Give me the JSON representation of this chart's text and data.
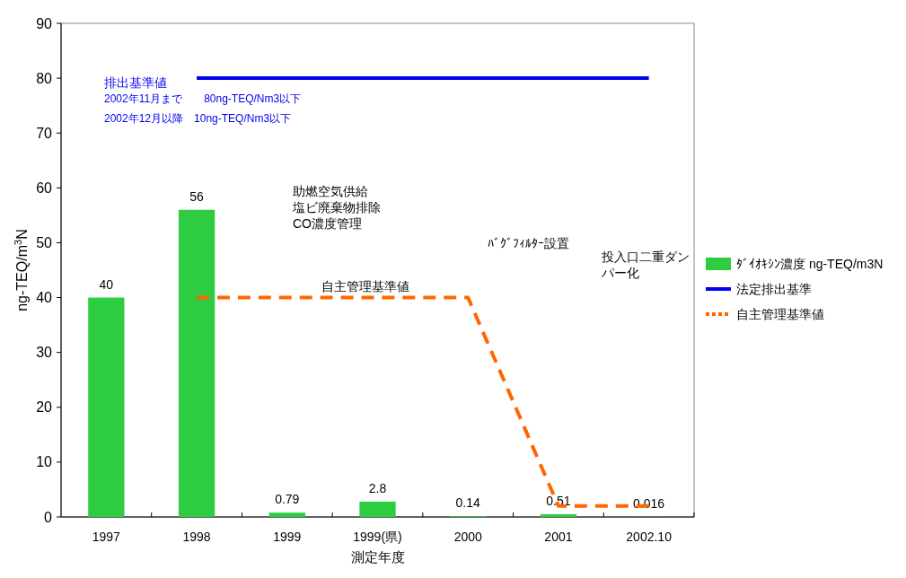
{
  "chart_data": {
    "type": "bar",
    "xlabel": "測定年度",
    "ylabel": "ng-TEQ/m$^{3}$N",
    "categories": [
      "1997",
      "1998",
      "1999",
      "1999(県)",
      "2000",
      "2001",
      "2002.10"
    ],
    "series": [
      {
        "name": "ﾀﾞｲｵｷｼﾝ濃度 ng-TEQ/m3N",
        "color": "#2ecc40",
        "values": [
          40,
          56,
          0.79,
          2.8,
          0.14,
          0.51,
          0.016
        ],
        "value_labels": [
          "40",
          "56",
          "0.79",
          "2.8",
          "0.14",
          "0.51",
          "0.016"
        ]
      },
      {
        "name": "法定排出基準",
        "type": "line",
        "color": "#0000ee",
        "line_style": "solid",
        "values": [
          null,
          80,
          80,
          80,
          80,
          80,
          80
        ]
      },
      {
        "name": "自主管理基準値",
        "type": "line",
        "color": "#ff6600",
        "line_style": "dashed",
        "values": [
          null,
          40,
          40,
          40,
          40,
          2,
          2
        ]
      }
    ],
    "ylim": [
      0,
      90
    ],
    "yticks": [
      0,
      10,
      20,
      30,
      40,
      50,
      60,
      70,
      80,
      90
    ],
    "legend": "right",
    "grid": false,
    "annotations": [
      "排出基準値",
      "2002年11月まで　　80ng-TEQ/Nm3以下",
      "2002年12月以降　10ng-TEQ/Nm3以下",
      "助燃空気供給",
      "塩ビ廃棄物排除",
      "CO濃度管理",
      "ﾊﾞｸﾞﾌｨﾙﾀｰ設置",
      "投入口二重ダンパー化",
      "自主管理基準値"
    ]
  }
}
